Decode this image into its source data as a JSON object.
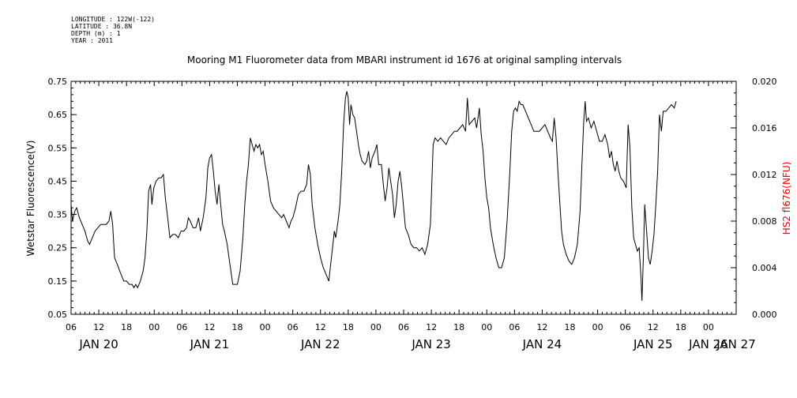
{
  "header": {
    "meta_lines": [
      "LONGITUDE : 122W(-122)",
      "LATITUDE : 36.8N",
      "DEPTH (m) : 1",
      "YEAR : 2011"
    ]
  },
  "chart_data": {
    "type": "line",
    "title": "Mooring M1 Fluorometer data from MBARI instrument id 1676 at original sampling intervals",
    "ylabel": "Wetstar Fluorescence(V)",
    "y2label": "HS2 fl676(NFU)",
    "y2_color": "#ff0000",
    "line_color": "#000000",
    "ylim": [
      0.05,
      0.75
    ],
    "yticks": [
      "0.05",
      "0.15",
      "0.25",
      "0.35",
      "0.45",
      "0.55",
      "0.65",
      "0.75"
    ],
    "y2lim": [
      0.0,
      0.02
    ],
    "y2ticks": [
      "0.000",
      "0.004",
      "0.008",
      "0.012",
      "0.016",
      "0.020"
    ],
    "x_unit": "hours since Jan 20 00:00, 2011",
    "xlim": [
      6,
      150
    ],
    "xticks": [
      {
        "x": 6,
        "label": "06"
      },
      {
        "x": 12,
        "label": "12"
      },
      {
        "x": 18,
        "label": "18"
      },
      {
        "x": 24,
        "label": "00"
      },
      {
        "x": 30,
        "label": "06"
      },
      {
        "x": 36,
        "label": "12"
      },
      {
        "x": 42,
        "label": "18"
      },
      {
        "x": 48,
        "label": "00"
      },
      {
        "x": 54,
        "label": "06"
      },
      {
        "x": 60,
        "label": "12"
      },
      {
        "x": 66,
        "label": "18"
      },
      {
        "x": 72,
        "label": "00"
      },
      {
        "x": 78,
        "label": "06"
      },
      {
        "x": 84,
        "label": "12"
      },
      {
        "x": 90,
        "label": "18"
      },
      {
        "x": 96,
        "label": "00"
      },
      {
        "x": 102,
        "label": "06"
      },
      {
        "x": 108,
        "label": "12"
      },
      {
        "x": 114,
        "label": "18"
      },
      {
        "x": 120,
        "label": "00"
      },
      {
        "x": 126,
        "label": "06"
      },
      {
        "x": 132,
        "label": "12"
      },
      {
        "x": 138,
        "label": "18"
      },
      {
        "x": 144,
        "label": "00"
      }
    ],
    "date_labels": [
      {
        "x": 12,
        "label": "JAN 20"
      },
      {
        "x": 36,
        "label": "JAN 21"
      },
      {
        "x": 60,
        "label": "JAN 22"
      },
      {
        "x": 84,
        "label": "JAN 23"
      },
      {
        "x": 108,
        "label": "JAN 24"
      },
      {
        "x": 132,
        "label": "JAN 25"
      },
      {
        "x": 144,
        "label": "JAN 26"
      },
      {
        "x": 150,
        "label": "JAN 27"
      }
    ],
    "series": [
      {
        "values": [
          [
            6,
            0.38
          ],
          [
            6.3,
            0.33
          ],
          [
            6.8,
            0.36
          ],
          [
            7.2,
            0.37
          ],
          [
            7.8,
            0.34
          ],
          [
            8.4,
            0.32
          ],
          [
            9.0,
            0.3
          ],
          [
            9.6,
            0.27
          ],
          [
            10.0,
            0.26
          ],
          [
            10.6,
            0.28
          ],
          [
            11.2,
            0.3
          ],
          [
            11.8,
            0.31
          ],
          [
            12.4,
            0.32
          ],
          [
            13.0,
            0.32
          ],
          [
            13.6,
            0.32
          ],
          [
            14.2,
            0.33
          ],
          [
            14.6,
            0.36
          ],
          [
            15.0,
            0.32
          ],
          [
            15.4,
            0.22
          ],
          [
            16.0,
            0.2
          ],
          [
            16.8,
            0.17
          ],
          [
            17.4,
            0.15
          ],
          [
            18.0,
            0.15
          ],
          [
            18.6,
            0.14
          ],
          [
            19.2,
            0.14
          ],
          [
            19.6,
            0.13
          ],
          [
            20.0,
            0.14
          ],
          [
            20.4,
            0.13
          ],
          [
            21.0,
            0.15
          ],
          [
            21.6,
            0.18
          ],
          [
            22.0,
            0.22
          ],
          [
            22.4,
            0.3
          ],
          [
            22.8,
            0.42
          ],
          [
            23.2,
            0.44
          ],
          [
            23.5,
            0.38
          ],
          [
            23.9,
            0.43
          ],
          [
            24.4,
            0.45
          ],
          [
            25.0,
            0.46
          ],
          [
            25.5,
            0.46
          ],
          [
            26.0,
            0.47
          ],
          [
            26.4,
            0.4
          ],
          [
            27.0,
            0.33
          ],
          [
            27.4,
            0.28
          ],
          [
            28.0,
            0.29
          ],
          [
            28.6,
            0.29
          ],
          [
            29.2,
            0.28
          ],
          [
            29.8,
            0.3
          ],
          [
            30.4,
            0.3
          ],
          [
            31.0,
            0.31
          ],
          [
            31.4,
            0.34
          ],
          [
            31.8,
            0.33
          ],
          [
            32.4,
            0.31
          ],
          [
            33.0,
            0.31
          ],
          [
            33.6,
            0.34
          ],
          [
            34.0,
            0.3
          ],
          [
            34.6,
            0.34
          ],
          [
            35.2,
            0.4
          ],
          [
            35.6,
            0.49
          ],
          [
            36.0,
            0.52
          ],
          [
            36.4,
            0.53
          ],
          [
            36.8,
            0.48
          ],
          [
            37.2,
            0.42
          ],
          [
            37.6,
            0.38
          ],
          [
            38.0,
            0.44
          ],
          [
            38.4,
            0.38
          ],
          [
            38.8,
            0.32
          ],
          [
            39.2,
            0.3
          ],
          [
            39.8,
            0.26
          ],
          [
            40.4,
            0.2
          ],
          [
            41.0,
            0.14
          ],
          [
            41.6,
            0.14
          ],
          [
            42.0,
            0.14
          ],
          [
            42.6,
            0.18
          ],
          [
            43.2,
            0.28
          ],
          [
            43.6,
            0.38
          ],
          [
            44.0,
            0.45
          ],
          [
            44.4,
            0.5
          ],
          [
            44.8,
            0.58
          ],
          [
            45.2,
            0.56
          ],
          [
            45.6,
            0.54
          ],
          [
            46.0,
            0.56
          ],
          [
            46.4,
            0.55
          ],
          [
            46.8,
            0.56
          ],
          [
            47.2,
            0.53
          ],
          [
            47.6,
            0.54
          ],
          [
            48.0,
            0.5
          ],
          [
            48.6,
            0.45
          ],
          [
            49.2,
            0.39
          ],
          [
            49.8,
            0.37
          ],
          [
            50.4,
            0.36
          ],
          [
            51.0,
            0.35
          ],
          [
            51.6,
            0.34
          ],
          [
            52.0,
            0.35
          ],
          [
            52.6,
            0.33
          ],
          [
            53.2,
            0.31
          ],
          [
            53.6,
            0.33
          ],
          [
            54.0,
            0.34
          ],
          [
            54.6,
            0.37
          ],
          [
            55.2,
            0.41
          ],
          [
            55.8,
            0.42
          ],
          [
            56.4,
            0.42
          ],
          [
            57.0,
            0.44
          ],
          [
            57.4,
            0.5
          ],
          [
            57.8,
            0.47
          ],
          [
            58.2,
            0.38
          ],
          [
            58.8,
            0.31
          ],
          [
            59.4,
            0.26
          ],
          [
            60.0,
            0.22
          ],
          [
            60.6,
            0.19
          ],
          [
            61.2,
            0.17
          ],
          [
            61.8,
            0.15
          ],
          [
            62.2,
            0.2
          ],
          [
            62.6,
            0.25
          ],
          [
            63.0,
            0.3
          ],
          [
            63.3,
            0.28
          ],
          [
            63.8,
            0.33
          ],
          [
            64.2,
            0.38
          ],
          [
            64.6,
            0.48
          ],
          [
            65.0,
            0.62
          ],
          [
            65.4,
            0.7
          ],
          [
            65.7,
            0.72
          ],
          [
            66.0,
            0.7
          ],
          [
            66.3,
            0.62
          ],
          [
            66.6,
            0.68
          ],
          [
            67.0,
            0.65
          ],
          [
            67.4,
            0.64
          ],
          [
            67.8,
            0.6
          ],
          [
            68.2,
            0.56
          ],
          [
            68.6,
            0.53
          ],
          [
            69.0,
            0.51
          ],
          [
            69.6,
            0.5
          ],
          [
            70.0,
            0.51
          ],
          [
            70.4,
            0.54
          ],
          [
            70.8,
            0.49
          ],
          [
            71.2,
            0.52
          ],
          [
            71.8,
            0.54
          ],
          [
            72.2,
            0.56
          ],
          [
            72.6,
            0.5
          ],
          [
            73.2,
            0.5
          ],
          [
            73.6,
            0.44
          ],
          [
            74.0,
            0.39
          ],
          [
            74.4,
            0.43
          ],
          [
            74.8,
            0.49
          ],
          [
            75.2,
            0.45
          ],
          [
            75.6,
            0.41
          ],
          [
            76.0,
            0.34
          ],
          [
            76.4,
            0.38
          ],
          [
            76.8,
            0.45
          ],
          [
            77.2,
            0.48
          ],
          [
            77.6,
            0.43
          ],
          [
            78.0,
            0.37
          ],
          [
            78.4,
            0.31
          ],
          [
            79.0,
            0.29
          ],
          [
            79.6,
            0.26
          ],
          [
            80.2,
            0.25
          ],
          [
            80.8,
            0.25
          ],
          [
            81.4,
            0.24
          ],
          [
            82.0,
            0.25
          ],
          [
            82.6,
            0.23
          ],
          [
            83.2,
            0.26
          ],
          [
            83.8,
            0.32
          ],
          [
            84.4,
            0.56
          ],
          [
            84.8,
            0.58
          ],
          [
            85.4,
            0.57
          ],
          [
            86.0,
            0.58
          ],
          [
            86.6,
            0.57
          ],
          [
            87.2,
            0.56
          ],
          [
            87.8,
            0.58
          ],
          [
            88.4,
            0.59
          ],
          [
            89.0,
            0.6
          ],
          [
            89.6,
            0.6
          ],
          [
            90.2,
            0.61
          ],
          [
            90.8,
            0.62
          ],
          [
            91.4,
            0.6
          ],
          [
            91.8,
            0.7
          ],
          [
            92.2,
            0.62
          ],
          [
            92.8,
            0.63
          ],
          [
            93.4,
            0.64
          ],
          [
            93.8,
            0.61
          ],
          [
            94.4,
            0.67
          ],
          [
            94.8,
            0.59
          ],
          [
            95.2,
            0.54
          ],
          [
            95.6,
            0.46
          ],
          [
            96.0,
            0.4
          ],
          [
            96.4,
            0.37
          ],
          [
            96.8,
            0.31
          ],
          [
            97.4,
            0.26
          ],
          [
            98.0,
            0.22
          ],
          [
            98.6,
            0.19
          ],
          [
            99.2,
            0.19
          ],
          [
            99.8,
            0.22
          ],
          [
            100.4,
            0.33
          ],
          [
            101.0,
            0.48
          ],
          [
            101.4,
            0.6
          ],
          [
            101.8,
            0.66
          ],
          [
            102.2,
            0.67
          ],
          [
            102.6,
            0.66
          ],
          [
            103.0,
            0.69
          ],
          [
            103.4,
            0.68
          ],
          [
            103.8,
            0.68
          ],
          [
            104.4,
            0.66
          ],
          [
            105.0,
            0.64
          ],
          [
            105.6,
            0.62
          ],
          [
            106.2,
            0.6
          ],
          [
            106.8,
            0.6
          ],
          [
            107.4,
            0.6
          ],
          [
            108.0,
            0.61
          ],
          [
            108.6,
            0.62
          ],
          [
            109.2,
            0.6
          ],
          [
            109.8,
            0.58
          ],
          [
            110.2,
            0.57
          ],
          [
            110.6,
            0.64
          ],
          [
            111.0,
            0.58
          ],
          [
            111.4,
            0.48
          ],
          [
            111.8,
            0.39
          ],
          [
            112.2,
            0.3
          ],
          [
            112.6,
            0.26
          ],
          [
            113.2,
            0.23
          ],
          [
            113.8,
            0.21
          ],
          [
            114.4,
            0.2
          ],
          [
            115.0,
            0.22
          ],
          [
            115.6,
            0.26
          ],
          [
            116.2,
            0.36
          ],
          [
            116.6,
            0.5
          ],
          [
            117.0,
            0.63
          ],
          [
            117.3,
            0.69
          ],
          [
            117.6,
            0.63
          ],
          [
            118.0,
            0.64
          ],
          [
            118.6,
            0.61
          ],
          [
            119.2,
            0.63
          ],
          [
            119.8,
            0.6
          ],
          [
            120.4,
            0.57
          ],
          [
            121.0,
            0.57
          ],
          [
            121.6,
            0.59
          ],
          [
            122.2,
            0.56
          ],
          [
            122.6,
            0.52
          ],
          [
            123.0,
            0.54
          ],
          [
            123.4,
            0.5
          ],
          [
            123.8,
            0.48
          ],
          [
            124.2,
            0.51
          ],
          [
            124.6,
            0.48
          ],
          [
            125.0,
            0.46
          ],
          [
            125.6,
            0.45
          ],
          [
            126.2,
            0.43
          ],
          [
            126.6,
            0.62
          ],
          [
            127.0,
            0.55
          ],
          [
            127.4,
            0.37
          ],
          [
            127.8,
            0.28
          ],
          [
            128.2,
            0.26
          ],
          [
            128.6,
            0.24
          ],
          [
            129.0,
            0.25
          ],
          [
            129.4,
            0.16
          ],
          [
            129.6,
            0.09
          ],
          [
            129.9,
            0.22
          ],
          [
            130.2,
            0.38
          ],
          [
            130.6,
            0.3
          ],
          [
            131.0,
            0.22
          ],
          [
            131.4,
            0.2
          ],
          [
            131.8,
            0.24
          ],
          [
            132.2,
            0.29
          ],
          [
            132.6,
            0.38
          ],
          [
            133.0,
            0.48
          ],
          [
            133.4,
            0.65
          ],
          [
            133.8,
            0.6
          ],
          [
            134.2,
            0.66
          ],
          [
            134.8,
            0.66
          ],
          [
            135.4,
            0.67
          ],
          [
            136.0,
            0.68
          ],
          [
            136.6,
            0.67
          ],
          [
            137.0,
            0.69
          ]
        ]
      }
    ]
  }
}
